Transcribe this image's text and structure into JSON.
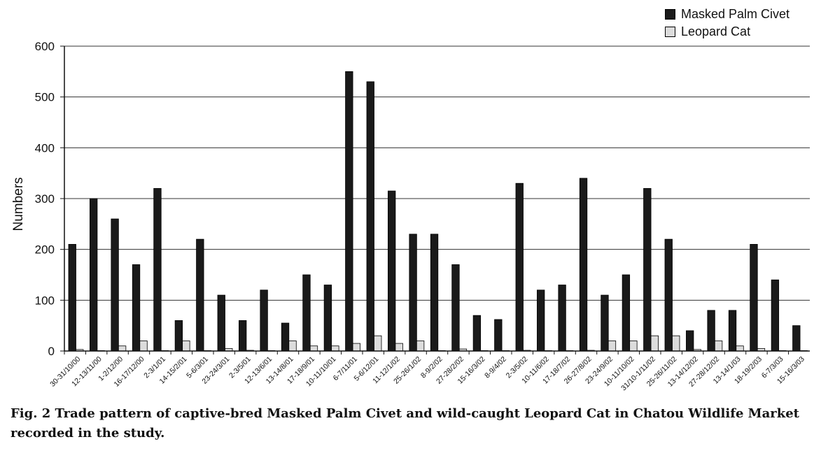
{
  "chart_data": {
    "type": "bar",
    "title": "",
    "xlabel": "",
    "ylabel": "Numbers",
    "ylim": [
      0,
      600
    ],
    "yticks": [
      0,
      100,
      200,
      300,
      400,
      500,
      600
    ],
    "grid": "horizontal",
    "legend_position": "top-right",
    "categories": [
      "30-31/10/00",
      "12-13/11/00",
      "1-2/12/00",
      "16-17/12/00",
      "2-3/1/01",
      "14-15/2/01",
      "5-6/3/01",
      "23-24/3/01",
      "2-3/5/01",
      "12-13/6/01",
      "13-14/8/01",
      "17-18/9/01",
      "10-11/10/01",
      "6-7/11/01",
      "5-6/12/01",
      "11-12/1/02",
      "25-26/1/02",
      "8-9/2/02",
      "27-28/2/02",
      "15-16/3/02",
      "8-9/4/02",
      "2-3/5/02",
      "10-11/6/02",
      "17-18/7/02",
      "26-27/8/02",
      "23-24/9/02",
      "10-11/10/02",
      "31/10-1/11/02",
      "25-26/11/02",
      "13-14/12/02",
      "27-28/12/02",
      "13-14/1/03",
      "18-19/2/03",
      "6-7/3/03",
      "15-16/3/03"
    ],
    "series": [
      {
        "name": "Masked Palm Civet",
        "color": "#1a1a1a",
        "values": [
          210,
          300,
          260,
          170,
          320,
          60,
          220,
          110,
          60,
          120,
          55,
          150,
          130,
          550,
          530,
          315,
          230,
          230,
          170,
          70,
          62,
          330,
          120,
          130,
          340,
          110,
          150,
          320,
          220,
          40,
          80,
          80,
          210,
          140,
          50
        ]
      },
      {
        "name": "Leopard Cat",
        "color": "#dcdcdc",
        "values": [
          3,
          0,
          10,
          20,
          0,
          20,
          0,
          5,
          1,
          0,
          20,
          10,
          10,
          15,
          30,
          15,
          20,
          0,
          4,
          0,
          0,
          1,
          0,
          0,
          1,
          20,
          20,
          30,
          30,
          3,
          20,
          10,
          5,
          0,
          0
        ]
      }
    ]
  },
  "caption": "Fig. 2  Trade pattern of captive-bred Masked Palm Civet and wild-caught Leopard Cat in Chatou Wildlife Market recorded in the study."
}
